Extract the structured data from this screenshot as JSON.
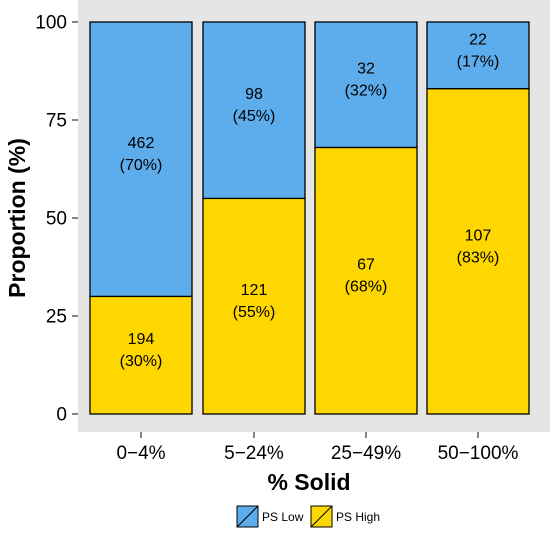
{
  "chart_data": {
    "type": "bar",
    "stacked": true,
    "categories": [
      "0−4%",
      "5−24%",
      "25−49%",
      "50−100%"
    ],
    "series": [
      {
        "name": "PS High",
        "color": "#FFD700",
        "values": [
          30,
          55,
          68,
          83
        ],
        "labels": [
          [
            "194",
            "(30%)"
          ],
          [
            "121",
            "(55%)"
          ],
          [
            "67",
            "(68%)"
          ],
          [
            "107",
            "(83%)"
          ]
        ]
      },
      {
        "name": "PS Low",
        "color": "#5DADEC",
        "values": [
          70,
          45,
          32,
          17
        ],
        "labels": [
          [
            "462",
            "(70%)"
          ],
          [
            "98",
            "(45%)"
          ],
          [
            "32",
            "(32%)"
          ],
          [
            "22",
            "(17%)"
          ]
        ]
      }
    ],
    "legend_order": [
      "PS Low",
      "PS High"
    ],
    "xlabel": "% Solid",
    "ylabel": "Proportion (%)",
    "ylim": [
      0,
      100
    ],
    "yticks": [
      0,
      25,
      50,
      75,
      100
    ],
    "legend_position": "bottom",
    "panel_background": "#E5E5E5",
    "bar_outline": "#000000"
  }
}
